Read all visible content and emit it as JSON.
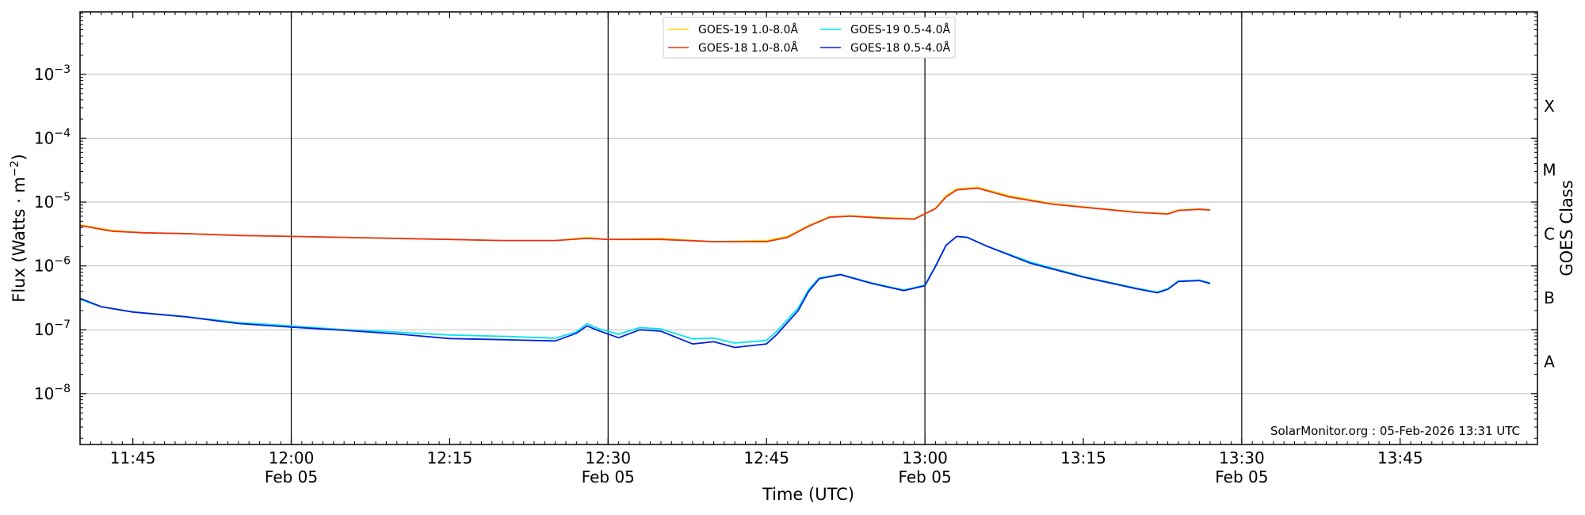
{
  "chart_data": {
    "type": "line",
    "xlabel": "Time (UTC)",
    "ylabel": "Flux (Watts · m",
    "ylabel_sup": "−2",
    "ylabel_close": ")",
    "right_label": "GOES Class",
    "credit": "SolarMonitor.org : 05-Feb-2026 13:31 UTC",
    "y_scale": "log",
    "ylim": [
      1.6e-09,
      0.0095
    ],
    "xlim": [
      "11:40",
      "13:58"
    ],
    "grid": "horizontal",
    "legend_position": "top-center",
    "x_ticks": [
      {
        "time": "11:45",
        "label": "11:45",
        "date": ""
      },
      {
        "time": "12:00",
        "label": "12:00",
        "date": "Feb 05"
      },
      {
        "time": "12:15",
        "label": "12:15",
        "date": ""
      },
      {
        "time": "12:30",
        "label": "12:30",
        "date": "Feb 05"
      },
      {
        "time": "12:45",
        "label": "12:45",
        "date": ""
      },
      {
        "time": "13:00",
        "label": "13:00",
        "date": "Feb 05"
      },
      {
        "time": "13:15",
        "label": "13:15",
        "date": ""
      },
      {
        "time": "13:30",
        "label": "13:30",
        "date": "Feb 05"
      },
      {
        "time": "13:45",
        "label": "13:45",
        "date": ""
      }
    ],
    "vertical_lines": [
      "12:00",
      "12:30",
      "13:00",
      "13:30"
    ],
    "y_ticks": [
      {
        "value": 1e-08,
        "exp": "−8"
      },
      {
        "value": 1e-07,
        "exp": "−7"
      },
      {
        "value": 1e-06,
        "exp": "−6"
      },
      {
        "value": 1e-05,
        "exp": "−5"
      },
      {
        "value": 0.0001,
        "exp": "−4"
      },
      {
        "value": 0.001,
        "exp": "−3"
      }
    ],
    "goes_classes": [
      {
        "label": "A",
        "value": 3.16e-08
      },
      {
        "label": "B",
        "value": 3.16e-07
      },
      {
        "label": "C",
        "value": 3.16e-06
      },
      {
        "label": "M",
        "value": 3.16e-05
      },
      {
        "label": "X",
        "value": 0.000316
      }
    ],
    "series": [
      {
        "name": "GOES-19 1.0-8.0Å",
        "color": "#ffd700",
        "x": [
          "11:40",
          "11:43",
          "11:46",
          "11:50",
          "11:55",
          "12:00",
          "12:05",
          "12:10",
          "12:15",
          "12:20",
          "12:25",
          "12:28",
          "12:30",
          "12:35",
          "12:40",
          "12:45",
          "12:47",
          "12:49",
          "12:51",
          "12:53",
          "12:56",
          "12:59",
          "13:01",
          "13:02",
          "13:03",
          "13:05",
          "13:08",
          "13:12",
          "13:16",
          "13:20",
          "13:23",
          "13:24",
          "13:26",
          "13:27"
        ],
        "values": [
          4.4e-06,
          3.6e-06,
          3.3e-06,
          3.2e-06,
          3e-06,
          2.9e-06,
          2.8e-06,
          2.7e-06,
          2.6e-06,
          2.5e-06,
          2.5e-06,
          2.8e-06,
          2.6e-06,
          2.7e-06,
          2.4e-06,
          2.5e-06,
          2.9e-06,
          4.3e-06,
          5.9e-06,
          6.1e-06,
          5.7e-06,
          5.5e-06,
          8e-06,
          1.25e-05,
          1.6e-05,
          1.7e-05,
          1.25e-05,
          9.5e-06,
          8.1e-06,
          7e-06,
          6.6e-06,
          7.5e-06,
          7.8e-06,
          7.6e-06
        ]
      },
      {
        "name": "GOES-18 1.0-8.0Å",
        "color": "#e8341c",
        "x": [
          "11:40",
          "11:43",
          "11:46",
          "11:50",
          "11:55",
          "12:00",
          "12:05",
          "12:10",
          "12:15",
          "12:20",
          "12:25",
          "12:28",
          "12:30",
          "12:35",
          "12:40",
          "12:45",
          "12:47",
          "12:49",
          "12:51",
          "12:53",
          "12:56",
          "12:59",
          "13:01",
          "13:02",
          "13:03",
          "13:05",
          "13:08",
          "13:12",
          "13:16",
          "13:20",
          "13:23",
          "13:24",
          "13:26",
          "13:27"
        ],
        "values": [
          4.3e-06,
          3.5e-06,
          3.3e-06,
          3.2e-06,
          3e-06,
          2.9e-06,
          2.8e-06,
          2.7e-06,
          2.6e-06,
          2.5e-06,
          2.5e-06,
          2.7e-06,
          2.6e-06,
          2.6e-06,
          2.4e-06,
          2.4e-06,
          2.8e-06,
          4.2e-06,
          5.8e-06,
          6e-06,
          5.6e-06,
          5.4e-06,
          7.9e-06,
          1.2e-05,
          1.55e-05,
          1.65e-05,
          1.2e-05,
          9.3e-06,
          8e-06,
          6.9e-06,
          6.5e-06,
          7.4e-06,
          7.7e-06,
          7.5e-06
        ]
      },
      {
        "name": "GOES-19 0.5-4.0Å",
        "color": "#00e5ee",
        "x": [
          "11:40",
          "11:42",
          "11:45",
          "11:50",
          "11:55",
          "12:00",
          "12:05",
          "12:10",
          "12:15",
          "12:20",
          "12:25",
          "12:27",
          "12:28",
          "12:29",
          "12:31",
          "12:33",
          "12:35",
          "12:38",
          "12:40",
          "12:42",
          "12:45",
          "12:46",
          "12:48",
          "12:49",
          "12:50",
          "12:52",
          "12:55",
          "12:58",
          "13:00",
          "13:01",
          "13:02",
          "13:03",
          "13:04",
          "13:06",
          "13:10",
          "13:15",
          "13:20",
          "13:22",
          "13:23",
          "13:24",
          "13:26",
          "13:27"
        ],
        "values": [
          3e-07,
          2.3e-07,
          1.9e-07,
          1.6e-07,
          1.3e-07,
          1.15e-07,
          1e-07,
          9.2e-08,
          8.3e-08,
          7.9e-08,
          7.4e-08,
          9.3e-08,
          1.25e-07,
          1.05e-07,
          8.5e-08,
          1.08e-07,
          1.03e-07,
          7.2e-08,
          7.4e-08,
          6.2e-08,
          6.8e-08,
          9.5e-08,
          2.2e-07,
          4.3e-07,
          6.5e-07,
          7.4e-07,
          5.4e-07,
          4.2e-07,
          5e-07,
          1e-06,
          2.1e-06,
          2.9e-06,
          2.8e-06,
          2e-06,
          1.15e-06,
          6.8e-07,
          4.5e-07,
          3.9e-07,
          4.4e-07,
          5.8e-07,
          6e-07,
          5.4e-07
        ]
      },
      {
        "name": "GOES-18 0.5-4.0Å",
        "color": "#0022dd",
        "x": [
          "11:40",
          "11:42",
          "11:45",
          "11:50",
          "11:55",
          "12:00",
          "12:05",
          "12:10",
          "12:15",
          "12:20",
          "12:25",
          "12:27",
          "12:28",
          "12:29",
          "12:31",
          "12:33",
          "12:35",
          "12:38",
          "12:40",
          "12:42",
          "12:45",
          "12:46",
          "12:48",
          "12:49",
          "12:50",
          "12:52",
          "12:55",
          "12:58",
          "13:00",
          "13:01",
          "13:02",
          "13:03",
          "13:04",
          "13:06",
          "13:10",
          "13:15",
          "13:20",
          "13:22",
          "13:23",
          "13:24",
          "13:26",
          "13:27"
        ],
        "values": [
          3.1e-07,
          2.3e-07,
          1.9e-07,
          1.6e-07,
          1.25e-07,
          1.1e-07,
          9.8e-08,
          8.6e-08,
          7.3e-08,
          7e-08,
          6.7e-08,
          8.8e-08,
          1.15e-07,
          9.8e-08,
          7.5e-08,
          1e-07,
          9.5e-08,
          6e-08,
          6.5e-08,
          5.3e-08,
          6e-08,
          8.5e-08,
          2e-07,
          4e-07,
          6.3e-07,
          7.3e-07,
          5.3e-07,
          4.1e-07,
          4.9e-07,
          9.8e-07,
          2.1e-06,
          2.9e-06,
          2.8e-06,
          2e-06,
          1.1e-06,
          6.7e-07,
          4.4e-07,
          3.8e-07,
          4.3e-07,
          5.7e-07,
          5.9e-07,
          5.3e-07
        ]
      }
    ]
  }
}
